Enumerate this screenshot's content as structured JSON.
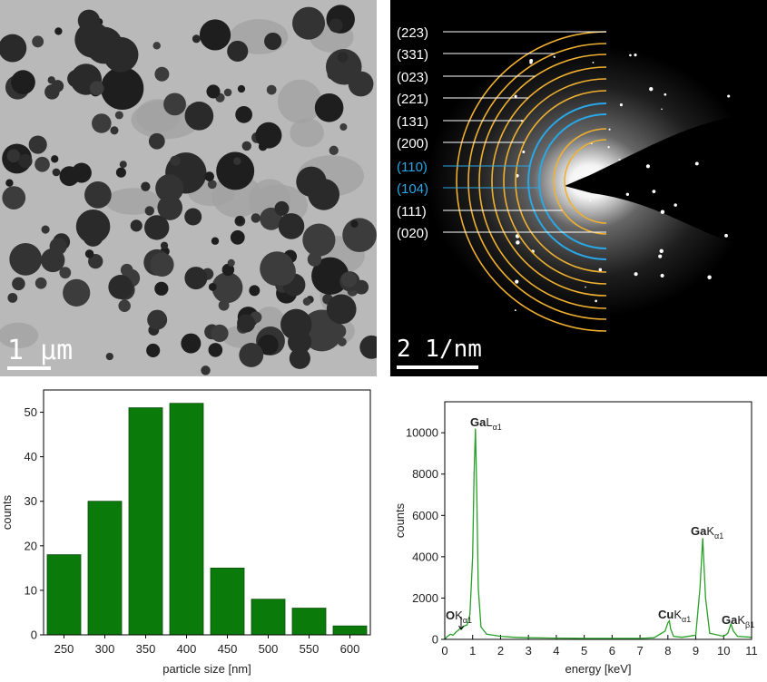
{
  "panels": {
    "tem": {
      "scale_label": "1 µm"
    },
    "diffraction": {
      "scale_label": "2 1/nm",
      "rings": [
        {
          "label": "(223)",
          "color": "#f0b030"
        },
        {
          "label": "(331)",
          "color": "#f0b030"
        },
        {
          "label": "(023)",
          "color": "#f0b030"
        },
        {
          "label": "(221)",
          "color": "#f0b030"
        },
        {
          "label": "(131)",
          "color": "#f0b030"
        },
        {
          "label": "(200)",
          "color": "#f0b030"
        },
        {
          "label": "(110)",
          "color": "#2aa7e6"
        },
        {
          "label": "(104)",
          "color": "#2aa7e6"
        },
        {
          "label": "(111)",
          "color": "#f0b030"
        },
        {
          "label": "(020)",
          "color": "#f0b030"
        }
      ]
    }
  },
  "chart_data": [
    {
      "type": "bar",
      "x_label": "particle size [nm]",
      "y_label": "counts",
      "categories": [
        "250",
        "300",
        "350",
        "400",
        "450",
        "500",
        "550",
        "600"
      ],
      "values": [
        18,
        30,
        51,
        52,
        15,
        8,
        6,
        2
      ],
      "color": "#0a7a0a",
      "ylim": [
        0,
        55
      ],
      "yticks": [
        0,
        10,
        20,
        30,
        40,
        50
      ]
    },
    {
      "type": "line",
      "x_label": "energy [keV]",
      "y_label": "counts",
      "color": "#27a027",
      "x": [
        0,
        0.1,
        0.2,
        0.3,
        0.4,
        0.5,
        0.55,
        0.6,
        0.7,
        0.8,
        0.9,
        1.0,
        1.05,
        1.1,
        1.15,
        1.2,
        1.3,
        1.5,
        2,
        2.5,
        3,
        4,
        5,
        6,
        7,
        7.5,
        7.9,
        8.0,
        8.05,
        8.1,
        8.2,
        8.5,
        9.0,
        9.15,
        9.25,
        9.35,
        9.5,
        10.0,
        10.15,
        10.26,
        10.35,
        10.5,
        11
      ],
      "values": [
        0,
        150,
        250,
        200,
        350,
        450,
        550,
        500,
        650,
        700,
        1200,
        4000,
        8000,
        10200,
        7000,
        2500,
        600,
        250,
        150,
        100,
        80,
        60,
        50,
        50,
        50,
        80,
        400,
        800,
        900,
        500,
        150,
        100,
        200,
        2500,
        4900,
        2000,
        300,
        150,
        300,
        750,
        400,
        150,
        100
      ],
      "xlim": [
        0,
        11
      ],
      "xticks": [
        0,
        1,
        2,
        3,
        4,
        5,
        6,
        7,
        8,
        9,
        10,
        11
      ],
      "ylim": [
        0,
        11500
      ],
      "yticks": [
        0,
        2000,
        4000,
        6000,
        8000,
        10000
      ],
      "annotations": [
        {
          "element": "O",
          "line": "K",
          "sub": "α1"
        },
        {
          "element": "Ga",
          "line": "L",
          "sub": "α1"
        },
        {
          "element": "Cu",
          "line": "K",
          "sub": "α1"
        },
        {
          "element": "Ga",
          "line": "K",
          "sub": "α1"
        },
        {
          "element": "Ga",
          "line": "K",
          "sub": "β1"
        }
      ]
    }
  ]
}
